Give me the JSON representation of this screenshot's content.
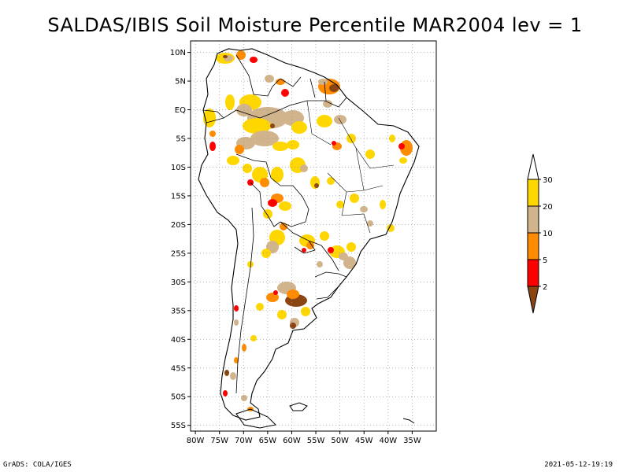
{
  "title": "SALDAS/IBIS Soil Moisture Percentile MAR2004 lev = 1",
  "footer": {
    "left": "GrADS: COLA/IGES",
    "right": "2021-05-12-19:19"
  },
  "map": {
    "region": "South America",
    "lat_labels": [
      "10N",
      "5N",
      "EQ",
      "5S",
      "10S",
      "15S",
      "20S",
      "25S",
      "30S",
      "35S",
      "40S",
      "45S",
      "50S",
      "55S"
    ],
    "lon_labels": [
      "80W",
      "75W",
      "70W",
      "65W",
      "60W",
      "55W",
      "50W",
      "45W",
      "40W",
      "35W"
    ],
    "lat_range": [
      -56,
      12
    ],
    "lon_range": [
      -81,
      -30
    ],
    "grid": "dotted"
  },
  "legend": {
    "type": "colorbar",
    "orientation": "vertical",
    "bins": [
      {
        "label": "2",
        "color": "#8b4513"
      },
      {
        "label": "5",
        "color": "#ff0000"
      },
      {
        "label": "10",
        "color": "#ff8c00"
      },
      {
        "label": "20",
        "color": "#d2b48c"
      },
      {
        "label": "30",
        "color": "#ffd700"
      }
    ],
    "top_color": "#ffffff",
    "colors": {
      "below_2": "#8b4513",
      "2_5": "#ff0000",
      "5_10": "#ff8c00",
      "10_20": "#d2b48c",
      "20_30": "#ffd700",
      "above_30": "#ffffff"
    }
  }
}
